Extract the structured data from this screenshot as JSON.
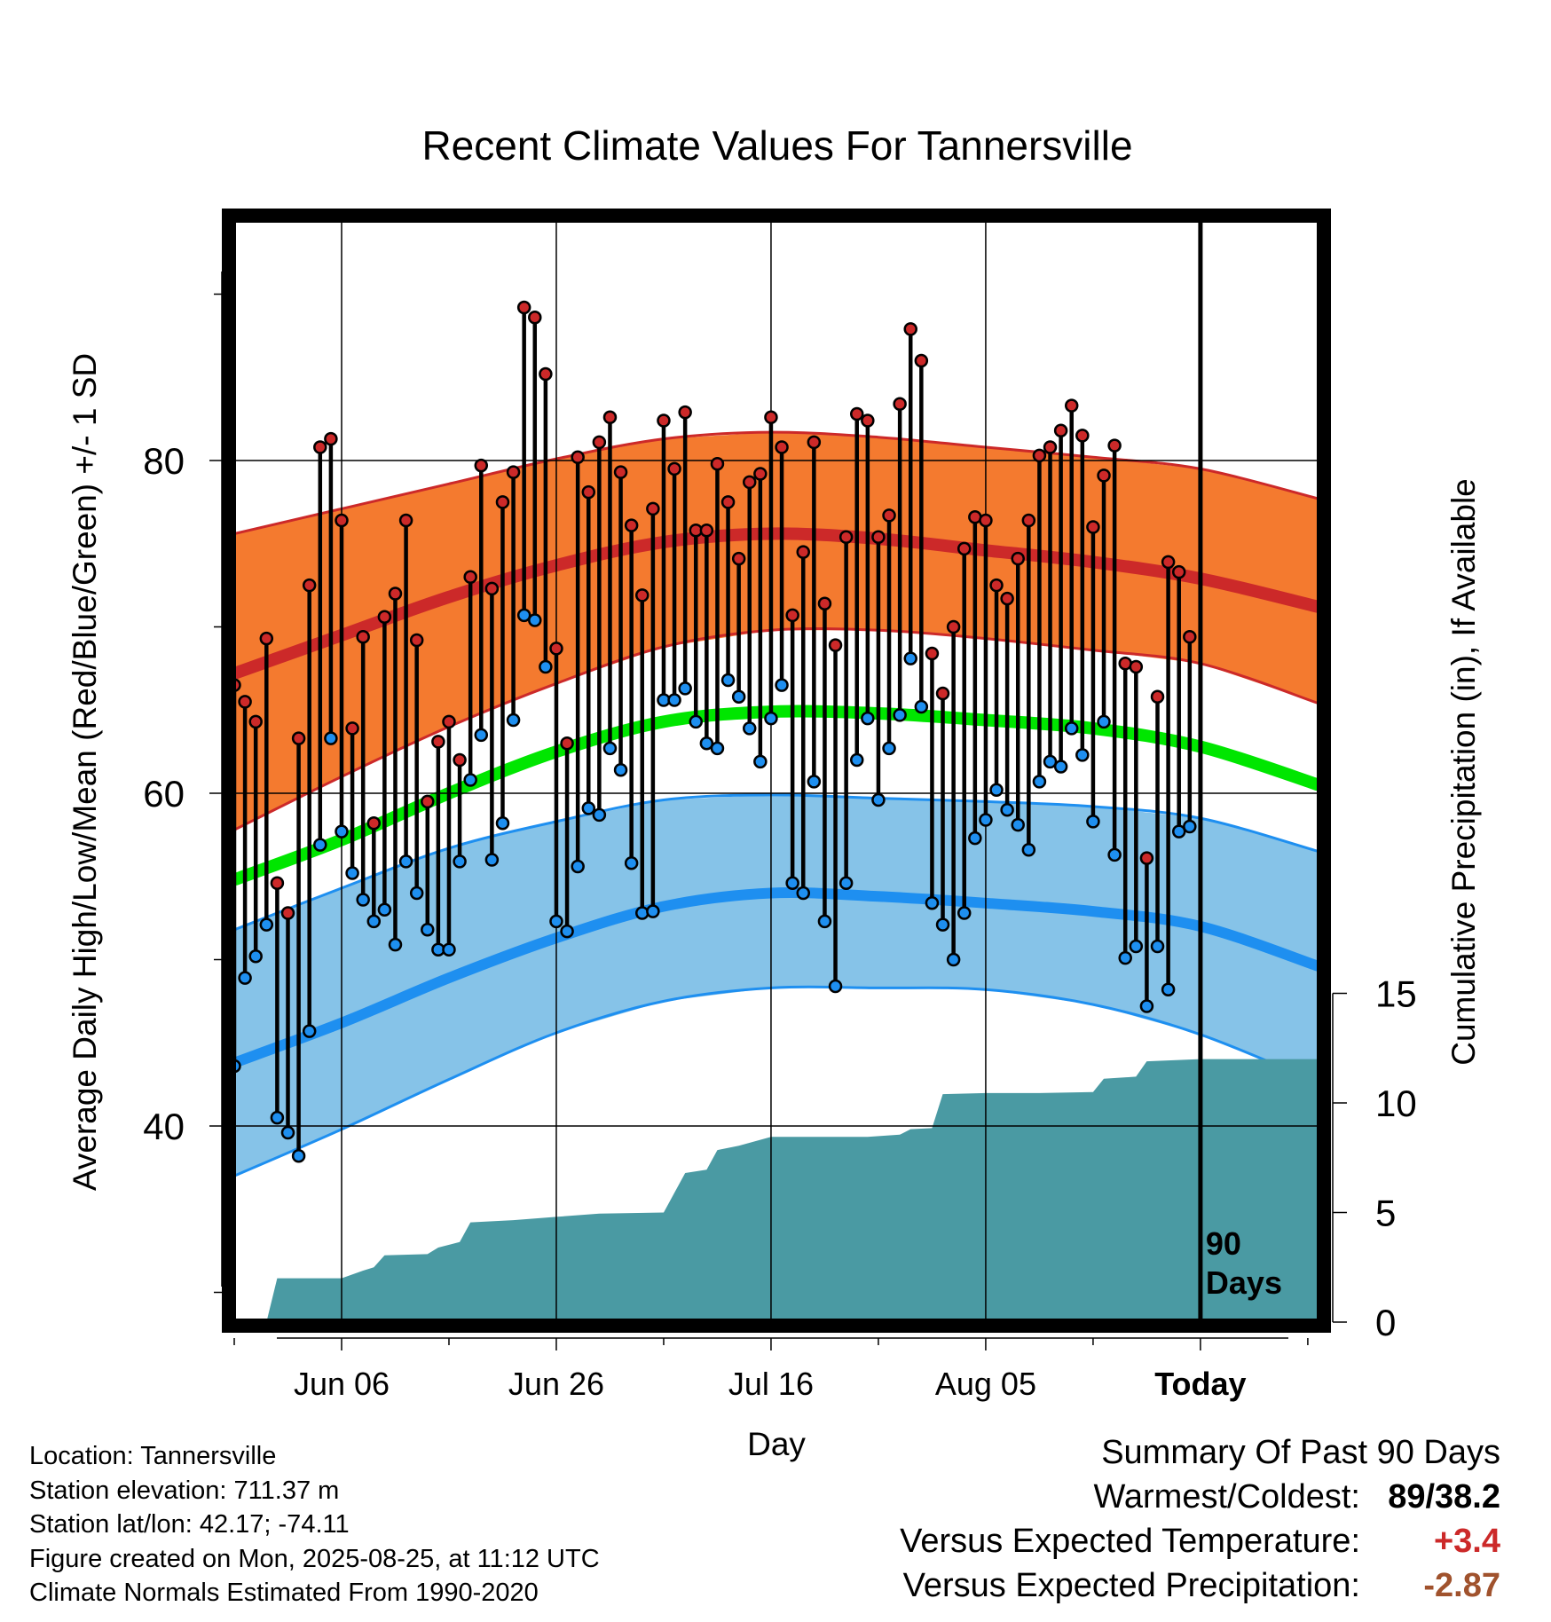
{
  "colors": {
    "high_band": "#f47a2f",
    "high_line": "#cc2929",
    "low_band": "#86c3e8",
    "low_line": "#1e8ff0",
    "mean_line": "#00e600",
    "precip": "#4a9aa3",
    "high_dot": "#cc2929",
    "low_dot": "#1e8ff0",
    "positive_temp": "#cc2929",
    "precip_deficit": "#a0522d"
  },
  "chart_data": {
    "type": "line",
    "title": "Recent Climate Values For Tannersville",
    "xlabel": "Day",
    "ylabel": "Average Daily High/Low/Mean (Red/Blue/Green) +/- 1 SD",
    "y2label": "Cumulative Precipitation (in), If Available",
    "x_start": "2025-05-27",
    "x_end": "2025-09-05",
    "today": "2025-08-25",
    "ylim": [
      29,
      96
    ],
    "y_ticks": [
      40,
      60,
      80
    ],
    "y2_ticks": [
      0,
      5,
      10,
      15
    ],
    "x_tick_labels": [
      {
        "date": "2025-06-06",
        "label": "Jun 06"
      },
      {
        "date": "2025-06-26",
        "label": "Jun 26"
      },
      {
        "date": "2025-07-16",
        "label": "Jul 16"
      },
      {
        "date": "2025-08-05",
        "label": "Aug 05"
      },
      {
        "date": "2025-08-25",
        "label": "Today"
      }
    ],
    "today_annotation": [
      "90",
      "Days"
    ],
    "grid": true,
    "normals": {
      "dates": [
        "2025-05-27",
        "2025-06-06",
        "2025-06-16",
        "2025-06-26",
        "2025-07-06",
        "2025-07-16",
        "2025-07-26",
        "2025-08-05",
        "2025-08-15",
        "2025-08-25",
        "2025-09-05"
      ],
      "high_mean": [
        67.2,
        69.5,
        71.8,
        73.7,
        75.1,
        75.6,
        75.3,
        74.6,
        73.9,
        72.9,
        71.2
      ],
      "high_sd_upper": [
        75.6,
        77.1,
        78.6,
        80.1,
        81.3,
        81.7,
        81.4,
        80.8,
        80.2,
        79.5,
        77.7
      ],
      "high_sd_lower": [
        57.8,
        61.0,
        64.0,
        66.6,
        68.8,
        69.8,
        69.8,
        69.3,
        68.6,
        67.8,
        65.4
      ],
      "mean": [
        54.8,
        57.2,
        60.0,
        62.5,
        64.3,
        64.9,
        64.8,
        64.4,
        63.9,
        62.8,
        60.5
      ],
      "low_mean": [
        43.8,
        46.2,
        48.9,
        51.3,
        53.2,
        54.0,
        53.8,
        53.4,
        52.9,
        52.0,
        49.6
      ],
      "low_sd_upper": [
        51.8,
        54.3,
        56.7,
        58.3,
        59.6,
        59.9,
        59.7,
        59.5,
        59.2,
        58.5,
        56.5
      ],
      "low_sd_lower": [
        37.0,
        39.8,
        42.8,
        45.6,
        47.5,
        48.3,
        48.3,
        48.2,
        47.3,
        45.5,
        42.6
      ]
    },
    "series": [
      {
        "name": "Daily High",
        "x_start": "2025-05-27",
        "values": [
          66.5,
          65.5,
          64.3,
          69.3,
          54.6,
          52.8,
          63.3,
          72.5,
          80.8,
          81.3,
          76.4,
          63.9,
          69.4,
          58.2,
          70.6,
          72.0,
          76.4,
          69.2,
          59.5,
          63.1,
          64.3,
          62.0,
          73.0,
          79.7,
          72.3,
          77.5,
          79.3,
          89.2,
          88.6,
          85.2,
          68.7,
          63.0,
          80.2,
          78.1,
          81.1,
          82.6,
          79.3,
          76.1,
          71.9,
          77.1,
          82.4,
          79.5,
          82.9,
          75.8,
          75.8,
          79.8,
          77.5,
          74.1,
          78.7,
          79.2,
          82.6,
          80.8,
          70.7,
          74.5,
          81.1,
          71.4,
          68.9,
          75.4,
          82.8,
          82.4,
          75.4,
          76.7,
          83.4,
          87.9,
          86.0,
          68.4,
          66.0,
          70.0,
          74.7,
          76.6,
          76.4,
          72.5,
          71.7,
          74.1,
          76.4,
          80.3,
          80.8,
          81.8,
          83.3,
          81.5,
          76.0,
          79.1,
          80.9,
          67.8,
          67.6,
          56.1,
          65.8,
          73.9,
          73.3,
          69.4
        ]
      },
      {
        "name": "Daily Low",
        "x_start": "2025-05-27",
        "values": [
          43.6,
          48.9,
          50.2,
          52.1,
          40.5,
          39.6,
          38.2,
          45.7,
          56.9,
          63.3,
          57.7,
          55.2,
          53.6,
          52.3,
          53.0,
          50.9,
          55.9,
          54.0,
          51.8,
          50.6,
          50.6,
          55.9,
          60.8,
          63.5,
          56.0,
          58.2,
          64.4,
          70.7,
          70.4,
          67.6,
          52.3,
          51.7,
          55.6,
          59.1,
          58.7,
          62.7,
          61.4,
          55.8,
          52.8,
          52.9,
          65.6,
          65.6,
          66.3,
          64.3,
          63.0,
          62.7,
          66.8,
          65.8,
          63.9,
          61.9,
          64.5,
          66.5,
          54.6,
          54.0,
          60.7,
          52.3,
          48.4,
          54.6,
          62.0,
          64.5,
          59.6,
          62.7,
          64.7,
          68.1,
          65.2,
          53.4,
          52.1,
          50.0,
          52.8,
          57.3,
          58.4,
          60.2,
          59.0,
          58.1,
          56.6,
          60.7,
          61.9,
          61.6,
          63.9,
          62.3,
          58.3,
          64.3,
          56.3,
          50.1,
          50.8,
          47.2,
          50.8,
          48.2,
          57.7,
          58.0
        ]
      },
      {
        "name": "Cumulative Precipitation",
        "axis": "y2",
        "points": [
          {
            "date": "2025-05-30",
            "value": 0.0
          },
          {
            "date": "2025-05-31",
            "value": 2.0
          },
          {
            "date": "2025-06-06",
            "value": 2.0
          },
          {
            "date": "2025-06-08",
            "value": 2.35
          },
          {
            "date": "2025-06-09",
            "value": 2.5
          },
          {
            "date": "2025-06-10",
            "value": 3.05
          },
          {
            "date": "2025-06-14",
            "value": 3.1
          },
          {
            "date": "2025-06-15",
            "value": 3.4
          },
          {
            "date": "2025-06-17",
            "value": 3.65
          },
          {
            "date": "2025-06-18",
            "value": 4.55
          },
          {
            "date": "2025-06-22",
            "value": 4.65
          },
          {
            "date": "2025-06-26",
            "value": 4.8
          },
          {
            "date": "2025-06-30",
            "value": 4.95
          },
          {
            "date": "2025-07-06",
            "value": 5.0
          },
          {
            "date": "2025-07-08",
            "value": 6.8
          },
          {
            "date": "2025-07-10",
            "value": 6.95
          },
          {
            "date": "2025-07-11",
            "value": 7.85
          },
          {
            "date": "2025-07-13",
            "value": 8.05
          },
          {
            "date": "2025-07-16",
            "value": 8.45
          },
          {
            "date": "2025-07-25",
            "value": 8.45
          },
          {
            "date": "2025-07-28",
            "value": 8.55
          },
          {
            "date": "2025-07-29",
            "value": 8.8
          },
          {
            "date": "2025-07-31",
            "value": 8.85
          },
          {
            "date": "2025-08-01",
            "value": 10.4
          },
          {
            "date": "2025-08-05",
            "value": 10.45
          },
          {
            "date": "2025-08-10",
            "value": 10.45
          },
          {
            "date": "2025-08-15",
            "value": 10.5
          },
          {
            "date": "2025-08-16",
            "value": 11.1
          },
          {
            "date": "2025-08-19",
            "value": 11.2
          },
          {
            "date": "2025-08-20",
            "value": 11.9
          },
          {
            "date": "2025-08-25",
            "value": 12.0
          },
          {
            "date": "2025-09-05",
            "value": 12.0
          }
        ]
      }
    ]
  },
  "footer": {
    "location": "Location: Tannersville",
    "elevation": "Station elevation: 711.37 m",
    "latlon": "Station lat/lon: 42.17; -74.11",
    "created": "Figure created on Mon, 2025-08-25, at 11:12 UTC",
    "normals": "Climate Normals Estimated From 1990-2020"
  },
  "summary": {
    "title": "Summary Of Past 90 Days",
    "warmest_label": "Warmest/Coldest:",
    "warmest_value": "89/38.2",
    "temp_label": "Versus Expected Temperature:",
    "temp_value": "+3.4",
    "precip_label": "Versus Expected Precipitation:",
    "precip_value": "-2.87"
  }
}
